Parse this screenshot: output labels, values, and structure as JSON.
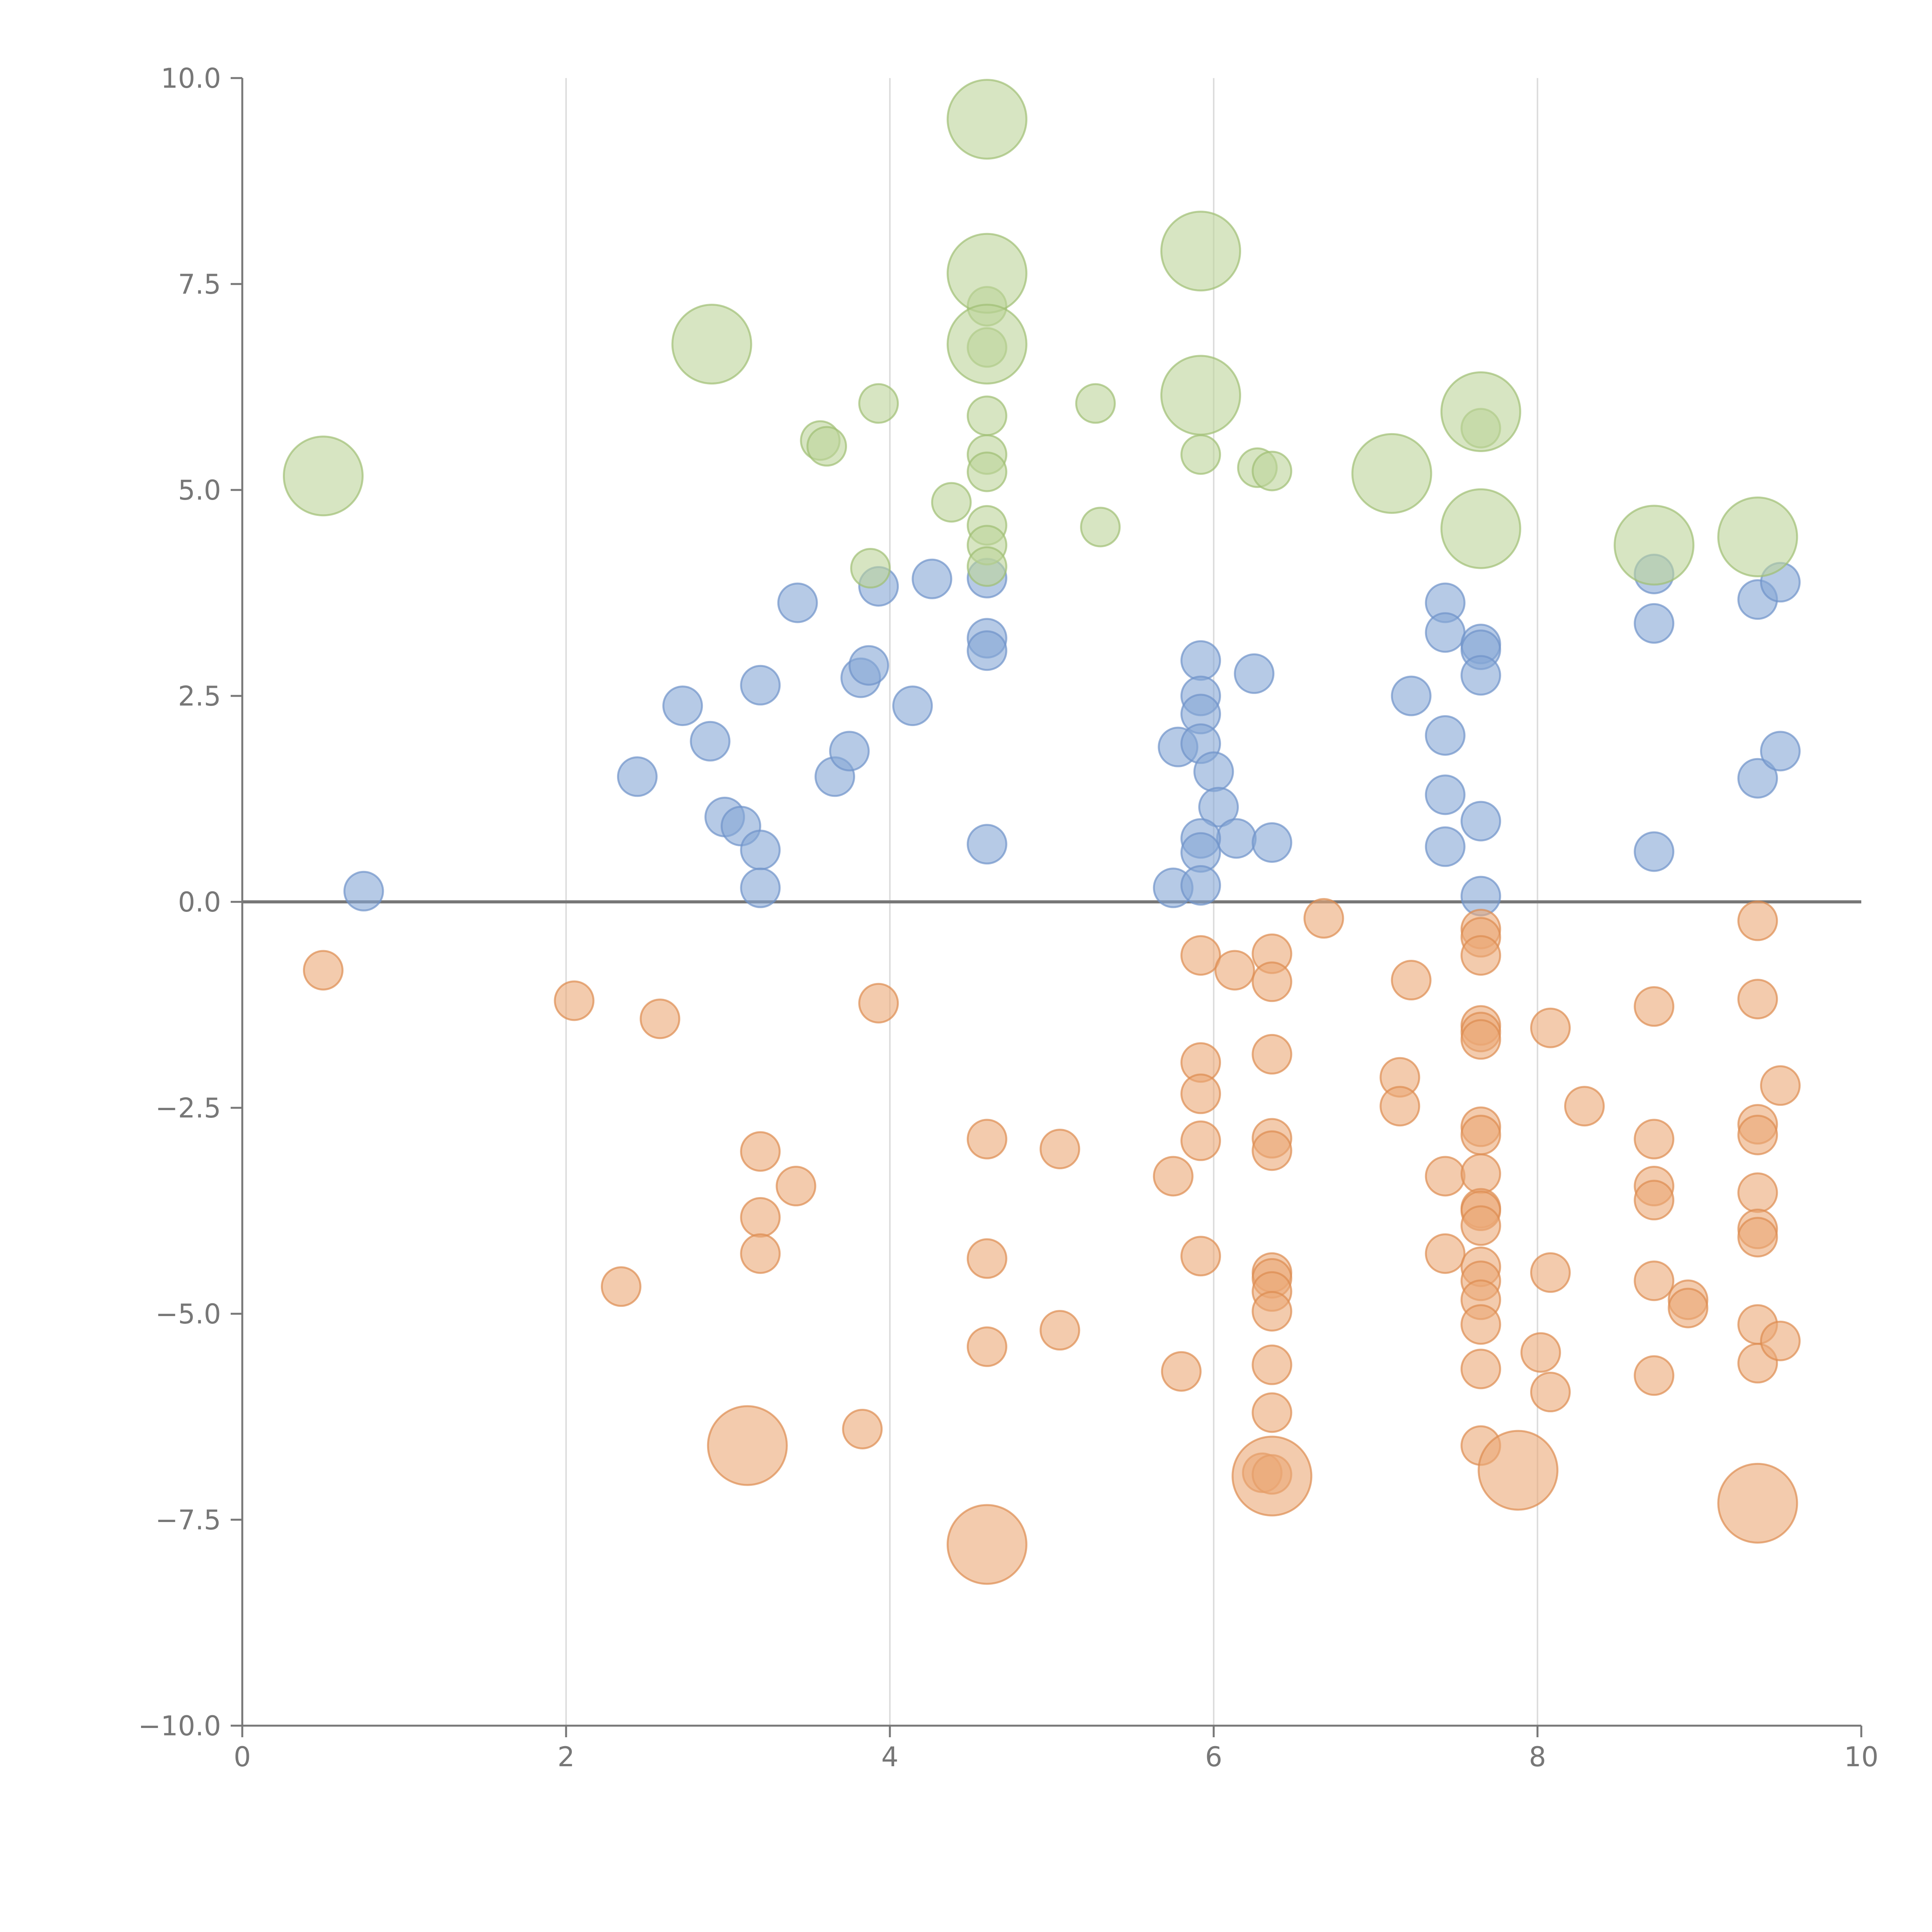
{
  "chart_data": {
    "type": "scatter",
    "title": "",
    "xlabel": "",
    "ylabel": "",
    "xlim": [
      0,
      10
    ],
    "ylim": [
      -10,
      10
    ],
    "x_ticks": [
      0,
      2,
      4,
      6,
      8,
      10
    ],
    "y_ticks": [
      10,
      7.5,
      5,
      2.5,
      0,
      -2.5,
      -5,
      -7.5,
      -10
    ],
    "x_tick_labels": [
      "0",
      "2",
      "4",
      "6",
      "8",
      "10"
    ],
    "y_tick_labels": [
      "10.0",
      "7.5",
      "5.0",
      "2.5",
      "0.0",
      "−2.5",
      "−5.0",
      "−7.5",
      "−10.0"
    ],
    "grid": "vertical",
    "zero_line": 0,
    "series": [
      {
        "name": "blue",
        "color": "#86a7d6",
        "stroke": "#6f93c9",
        "points": [
          [
            0.75,
            0.13
          ],
          [
            2.44,
            1.52
          ],
          [
            2.72,
            2.38
          ],
          [
            2.98,
            1.03
          ],
          [
            2.89,
            1.95
          ],
          [
            3.08,
            0.92
          ],
          [
            3.2,
            2.63
          ],
          [
            3.2,
            0.63
          ],
          [
            3.2,
            0.17
          ],
          [
            3.43,
            3.63
          ],
          [
            3.66,
            1.52
          ],
          [
            3.75,
            1.83
          ],
          [
            3.82,
            2.72
          ],
          [
            3.87,
            2.87
          ],
          [
            3.93,
            3.83
          ],
          [
            4.14,
            2.38
          ],
          [
            4.26,
            3.92
          ],
          [
            4.6,
            3.93
          ],
          [
            4.6,
            3.2
          ],
          [
            4.6,
            3.05
          ],
          [
            4.6,
            0.7
          ],
          [
            5.78,
            1.88
          ],
          [
            5.92,
            2.93
          ],
          [
            5.92,
            2.5
          ],
          [
            5.92,
            2.28
          ],
          [
            5.92,
            1.92
          ],
          [
            6.0,
            1.58
          ],
          [
            6.03,
            1.15
          ],
          [
            6.14,
            0.77
          ],
          [
            5.92,
            0.77
          ],
          [
            5.92,
            0.6
          ],
          [
            5.75,
            0.17
          ],
          [
            5.92,
            0.2
          ],
          [
            6.25,
            2.77
          ],
          [
            6.36,
            0.72
          ],
          [
            7.22,
            2.5
          ],
          [
            7.43,
            3.63
          ],
          [
            7.43,
            3.27
          ],
          [
            7.43,
            2.02
          ],
          [
            7.43,
            1.3
          ],
          [
            7.43,
            0.67
          ],
          [
            7.65,
            3.13
          ],
          [
            7.65,
            3.06
          ],
          [
            7.65,
            2.75
          ],
          [
            7.65,
            0.98
          ],
          [
            7.65,
            0.07
          ],
          [
            8.72,
            3.98
          ],
          [
            8.72,
            3.38
          ],
          [
            8.72,
            0.61
          ],
          [
            9.36,
            3.67
          ],
          [
            9.5,
            3.88
          ],
          [
            9.36,
            1.5
          ],
          [
            9.5,
            1.83
          ]
        ]
      },
      {
        "name": "orange",
        "color": "#eba977",
        "stroke": "#dd8b50",
        "points": [
          [
            0.5,
            -0.83
          ],
          [
            2.05,
            -1.2
          ],
          [
            2.58,
            -1.42
          ],
          [
            2.34,
            -4.67
          ],
          [
            3.2,
            -3.03
          ],
          [
            3.42,
            -3.45
          ],
          [
            3.2,
            -3.83
          ],
          [
            3.2,
            -4.27
          ],
          [
            3.83,
            -6.4
          ],
          [
            3.93,
            -1.23
          ],
          [
            4.6,
            -2.88
          ],
          [
            4.6,
            -4.33
          ],
          [
            4.6,
            -5.4
          ],
          [
            5.05,
            -3.0
          ],
          [
            5.05,
            -5.2
          ],
          [
            5.75,
            -3.33
          ],
          [
            5.8,
            -5.7
          ],
          [
            5.92,
            -0.65
          ],
          [
            5.92,
            -1.95
          ],
          [
            5.92,
            -2.33
          ],
          [
            5.92,
            -2.9
          ],
          [
            5.92,
            -4.3
          ],
          [
            6.13,
            -0.83
          ],
          [
            6.36,
            -0.63
          ],
          [
            6.36,
            -0.97
          ],
          [
            6.36,
            -1.85
          ],
          [
            6.36,
            -2.87
          ],
          [
            6.36,
            -3.02
          ],
          [
            6.36,
            -4.5
          ],
          [
            6.36,
            -4.57
          ],
          [
            6.36,
            -4.73
          ],
          [
            6.36,
            -4.97
          ],
          [
            6.36,
            -5.62
          ],
          [
            6.36,
            -6.2
          ],
          [
            6.3,
            -6.93
          ],
          [
            6.36,
            -6.95
          ],
          [
            6.68,
            -0.2
          ],
          [
            7.22,
            -0.95
          ],
          [
            7.15,
            -2.13
          ],
          [
            7.15,
            -2.48
          ],
          [
            7.43,
            -3.33
          ],
          [
            7.43,
            -4.27
          ],
          [
            7.65,
            -0.33
          ],
          [
            7.65,
            -0.43
          ],
          [
            7.65,
            -0.65
          ],
          [
            7.65,
            -1.5
          ],
          [
            7.65,
            -1.58
          ],
          [
            7.65,
            -1.67
          ],
          [
            7.65,
            -2.73
          ],
          [
            7.65,
            -2.83
          ],
          [
            7.65,
            -3.3
          ],
          [
            7.65,
            -3.72
          ],
          [
            7.65,
            -3.75
          ],
          [
            7.65,
            -3.93
          ],
          [
            7.65,
            -4.43
          ],
          [
            7.65,
            -4.6
          ],
          [
            7.65,
            -4.83
          ],
          [
            7.65,
            -5.13
          ],
          [
            7.65,
            -5.67
          ],
          [
            7.65,
            -6.6
          ],
          [
            8.02,
            -5.47
          ],
          [
            8.08,
            -1.53
          ],
          [
            8.08,
            -4.5
          ],
          [
            8.08,
            -5.95
          ],
          [
            8.29,
            -2.48
          ],
          [
            8.72,
            -1.27
          ],
          [
            8.72,
            -2.88
          ],
          [
            8.72,
            -3.45
          ],
          [
            8.72,
            -3.62
          ],
          [
            8.72,
            -4.6
          ],
          [
            8.72,
            -5.75
          ],
          [
            8.93,
            -4.83
          ],
          [
            8.93,
            -4.93
          ],
          [
            9.36,
            -0.23
          ],
          [
            9.36,
            -1.18
          ],
          [
            9.36,
            -2.7
          ],
          [
            9.36,
            -2.83
          ],
          [
            9.36,
            -3.53
          ],
          [
            9.36,
            -3.97
          ],
          [
            9.36,
            -4.07
          ],
          [
            9.36,
            -5.13
          ],
          [
            9.36,
            -5.6
          ],
          [
            9.5,
            -2.23
          ],
          [
            9.5,
            -5.33
          ]
        ]
      },
      {
        "name": "green",
        "color": "#bcd39a",
        "stroke": "#9fbf73",
        "points": [
          [
            3.57,
            5.6
          ],
          [
            3.61,
            5.53
          ],
          [
            3.88,
            4.05
          ],
          [
            3.93,
            6.05
          ],
          [
            4.38,
            4.85
          ],
          [
            4.6,
            7.23
          ],
          [
            4.6,
            6.73
          ],
          [
            4.6,
            5.9
          ],
          [
            4.6,
            5.43
          ],
          [
            4.6,
            5.22
          ],
          [
            4.6,
            4.57
          ],
          [
            4.6,
            4.33
          ],
          [
            4.6,
            4.07
          ],
          [
            5.27,
            6.05
          ],
          [
            5.3,
            4.55
          ],
          [
            5.92,
            5.43
          ],
          [
            6.27,
            5.27
          ],
          [
            6.36,
            5.23
          ],
          [
            7.65,
            5.75
          ]
        ]
      }
    ],
    "highlights": [
      {
        "series": "green",
        "x": 0.5,
        "y": 5.17
      },
      {
        "series": "green",
        "x": 2.9,
        "y": 6.77
      },
      {
        "series": "green",
        "x": 4.6,
        "y": 9.5
      },
      {
        "series": "green",
        "x": 4.6,
        "y": 7.63
      },
      {
        "series": "green",
        "x": 4.6,
        "y": 6.77
      },
      {
        "series": "green",
        "x": 5.92,
        "y": 7.9
      },
      {
        "series": "green",
        "x": 5.92,
        "y": 6.15
      },
      {
        "series": "green",
        "x": 7.1,
        "y": 5.2
      },
      {
        "series": "green",
        "x": 7.65,
        "y": 5.95
      },
      {
        "series": "green",
        "x": 7.65,
        "y": 4.53
      },
      {
        "series": "green",
        "x": 8.72,
        "y": 4.33
      },
      {
        "series": "green",
        "x": 9.36,
        "y": 4.43
      },
      {
        "series": "orange",
        "x": 3.12,
        "y": -6.6
      },
      {
        "series": "orange",
        "x": 4.6,
        "y": -7.8
      },
      {
        "series": "orange",
        "x": 6.36,
        "y": -6.97
      },
      {
        "series": "orange",
        "x": 7.88,
        "y": -6.9
      },
      {
        "series": "orange",
        "x": 9.36,
        "y": -7.3
      }
    ]
  }
}
